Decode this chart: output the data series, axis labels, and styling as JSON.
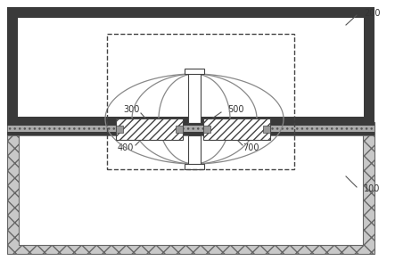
{
  "fig_width": 4.43,
  "fig_height": 2.93,
  "dpi": 100,
  "bg_color": "#ffffff",
  "dark_color": "#3a3a3a",
  "mid_color": "#888888",
  "line_color": "#555555",
  "label_color": "#333333",
  "hatch_color": "#555555"
}
